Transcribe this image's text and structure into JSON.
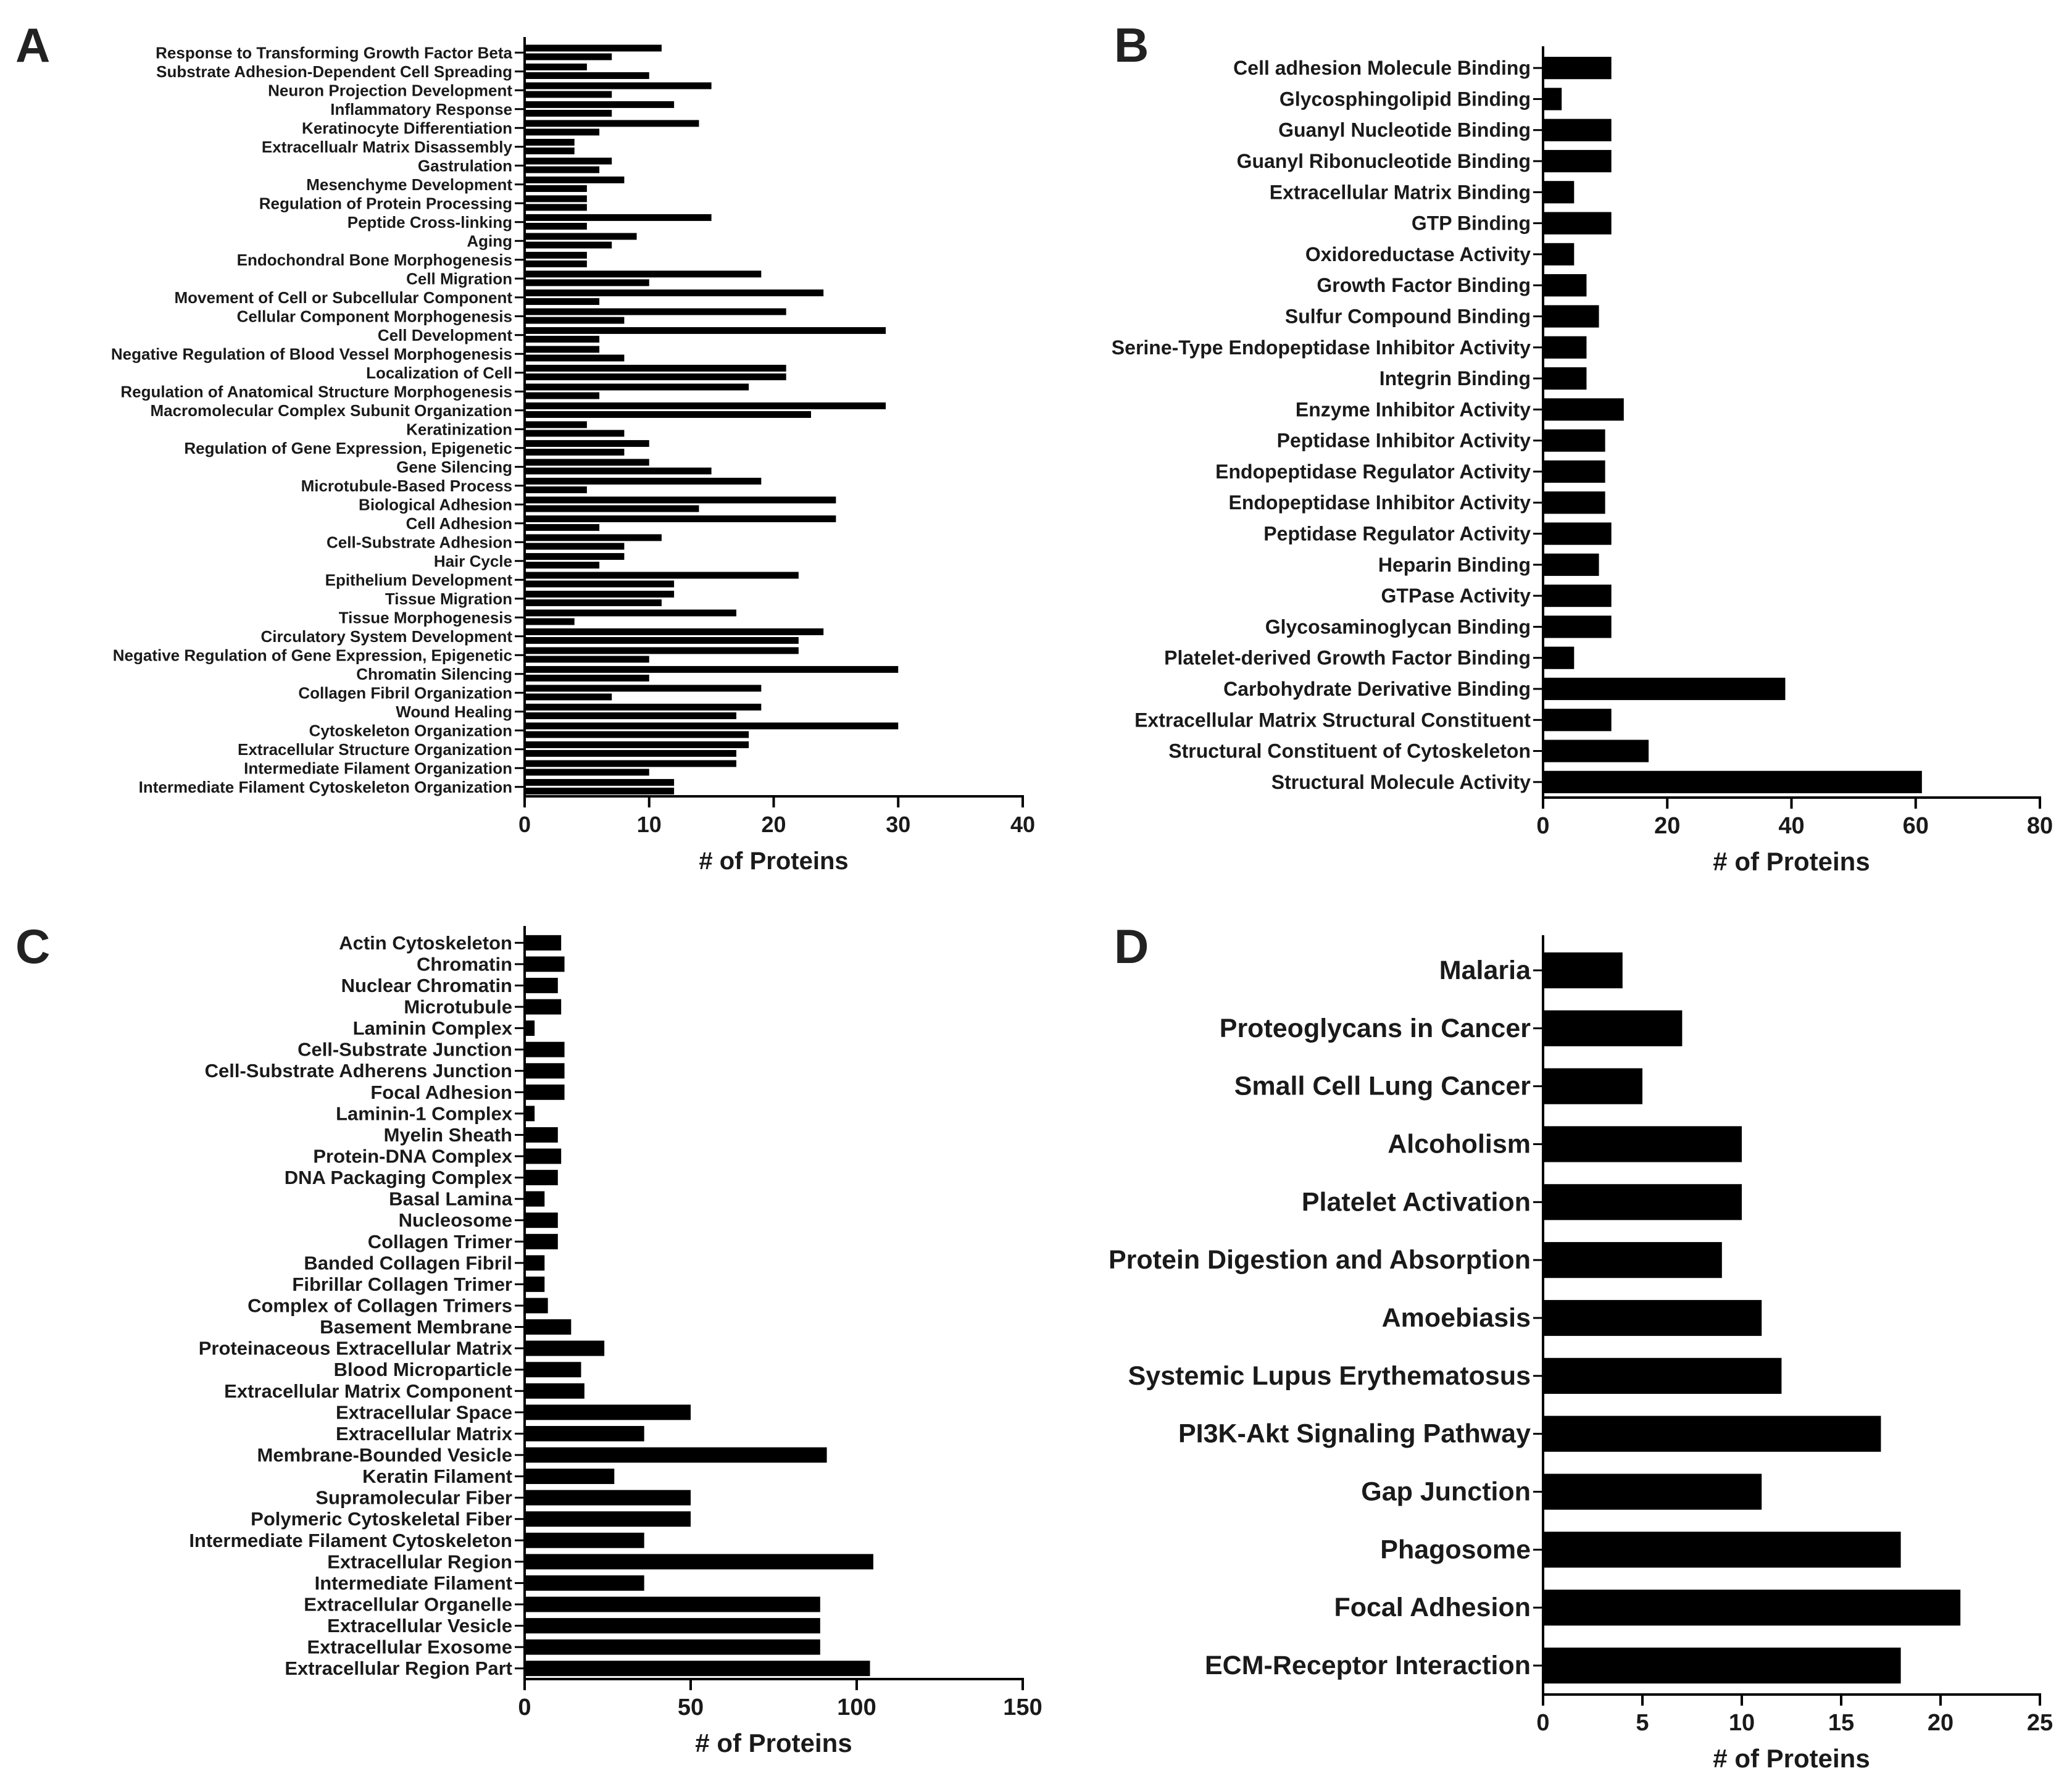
{
  "colors": {
    "bar": "#000000",
    "axis": "#000000",
    "text": "#1a1a1a"
  },
  "chart_data": [
    {
      "panel": "A",
      "type": "bar",
      "orientation": "horizontal",
      "xlabel": "# of Proteins",
      "xlim": [
        0,
        40
      ],
      "xticks": [
        0,
        10,
        20,
        30,
        40
      ],
      "categories": [
        "Response to Transforming Growth Factor Beta",
        "Substrate Adhesion-Dependent Cell Spreading",
        "Neuron Projection Development",
        "Inflammatory Response",
        "Keratinocyte Differentiation",
        "Extracellualr Matrix Disassembly",
        "Gastrulation",
        "Mesenchyme Development",
        "Regulation of Protein Processing",
        "Peptide Cross-linking",
        "Aging",
        "Endochondral Bone Morphogenesis",
        "Cell Migration",
        "Movement of Cell or Subcellular Component",
        "Cellular Component Morphogenesis",
        "Cell Development",
        "Negative Regulation of Blood Vessel Morphogenesis",
        "Localization of Cell",
        "Regulation of Anatomical Structure Morphogenesis",
        "Macromolecular Complex Subunit Organization",
        "Keratinization",
        "Regulation of Gene Expression, Epigenetic",
        "Gene Silencing",
        "Microtubule-Based Process",
        "Biological Adhesion",
        "Cell Adhesion",
        "Cell-Substrate Adhesion",
        "Hair Cycle",
        "Epithelium Development",
        "Tissue Migration",
        "Tissue Morphogenesis",
        "Circulatory System Development",
        "Negative Regulation of Gene Expression, Epigenetic",
        "Chromatin Silencing",
        "Collagen Fibril Organization",
        "Wound Healing",
        "Cytoskeleton Organization",
        "Extracellular Structure Organization",
        "Intermediate Filament Organization",
        "Intermediate Filament Cytoskeleton Organization"
      ],
      "series": [
        {
          "values": [
            11,
            5,
            15,
            12,
            14,
            4,
            7,
            8,
            5,
            15,
            9,
            5,
            19,
            24,
            21,
            29,
            6,
            21,
            18,
            29,
            5,
            10,
            10,
            19,
            25,
            25,
            11,
            8,
            22,
            12,
            17,
            24,
            22,
            30,
            19,
            19,
            30,
            18,
            17,
            12
          ]
        },
        {
          "values": [
            7,
            10,
            7,
            7,
            6,
            4,
            6,
            5,
            5,
            5,
            7,
            5,
            10,
            6,
            8,
            6,
            8,
            21,
            6,
            23,
            8,
            8,
            15,
            5,
            14,
            6,
            8,
            6,
            12,
            11,
            4,
            22,
            10,
            10,
            7,
            17,
            18,
            17,
            10,
            12
          ]
        }
      ]
    },
    {
      "panel": "B",
      "type": "bar",
      "orientation": "horizontal",
      "xlabel": "# of Proteins",
      "xlim": [
        0,
        80
      ],
      "xticks": [
        0,
        20,
        40,
        60,
        80
      ],
      "categories": [
        "Cell adhesion Molecule Binding",
        "Glycosphingolipid Binding",
        "Guanyl Nucleotide Binding",
        "Guanyl Ribonucleotide Binding",
        "Extracellular Matrix Binding",
        "GTP Binding",
        "Oxidoreductase Activity",
        "Growth Factor Binding",
        "Sulfur Compound Binding",
        "Serine-Type Endopeptidase Inhibitor Activity",
        "Integrin Binding",
        "Enzyme Inhibitor Activity",
        "Peptidase Inhibitor Activity",
        "Endopeptidase Regulator Activity",
        "Endopeptidase Inhibitor Activity",
        "Peptidase Regulator Activity",
        "Heparin Binding",
        "GTPase Activity",
        "Glycosaminoglycan Binding",
        "Platelet-derived Growth Factor Binding",
        "Carbohydrate Derivative Binding",
        "Extracellular Matrix Structural Constituent",
        "Structural Constituent of Cytoskeleton",
        "Structural Molecule Activity"
      ],
      "values": [
        11,
        3,
        11,
        11,
        5,
        11,
        5,
        7,
        9,
        7,
        7,
        13,
        10,
        10,
        10,
        11,
        9,
        11,
        11,
        5,
        39,
        11,
        17,
        61
      ]
    },
    {
      "panel": "C",
      "type": "bar",
      "orientation": "horizontal",
      "xlabel": "# of Proteins",
      "xlim": [
        0,
        150
      ],
      "xticks": [
        0,
        50,
        100,
        150
      ],
      "categories": [
        "Actin Cytoskeleton",
        "Chromatin",
        "Nuclear Chromatin",
        "Microtubule",
        "Laminin Complex",
        "Cell-Substrate Junction",
        "Cell-Substrate Adherens Junction",
        "Focal Adhesion",
        "Laminin-1 Complex",
        "Myelin Sheath",
        "Protein-DNA Complex",
        "DNA Packaging Complex",
        "Basal Lamina",
        "Nucleosome",
        "Collagen Trimer",
        "Banded Collagen Fibril",
        "Fibrillar Collagen Trimer",
        "Complex of Collagen Trimers",
        "Basement Membrane",
        "Proteinaceous Extracellular Matrix",
        "Blood Microparticle",
        "Extracellular Matrix Component",
        "Extracellular Space",
        "Extracellular Matrix",
        "Membrane-Bounded Vesicle",
        "Keratin Filament",
        "Supramolecular Fiber",
        "Polymeric Cytoskeletal Fiber",
        "Intermediate Filament Cytoskeleton",
        "Extracellular Region",
        "Intermediate Filament ",
        "Extracellular Organelle",
        "Extracellular Vesicle",
        "Extracellular Exosome",
        "Extracellular Region Part"
      ],
      "values": [
        11,
        12,
        10,
        11,
        3,
        12,
        12,
        12,
        3,
        10,
        11,
        10,
        6,
        10,
        10,
        6,
        6,
        7,
        14,
        24,
        17,
        18,
        50,
        36,
        91,
        27,
        50,
        50,
        36,
        105,
        36,
        89,
        89,
        89,
        104
      ]
    },
    {
      "panel": "D",
      "type": "bar",
      "orientation": "horizontal",
      "xlabel": "# of Proteins",
      "xlim": [
        0,
        25
      ],
      "xticks": [
        0,
        5,
        10,
        15,
        20,
        25
      ],
      "categories": [
        "Malaria",
        "Proteoglycans in Cancer",
        "Small Cell Lung Cancer",
        "Alcoholism",
        "Platelet Activation",
        "Protein Digestion and Absorption",
        "Amoebiasis",
        "Systemic Lupus Erythematosus",
        "PI3K-Akt Signaling Pathway",
        "Gap Junction",
        "Phagosome",
        "Focal Adhesion",
        "ECM-Receptor Interaction"
      ],
      "values": [
        4,
        7,
        5,
        10,
        10,
        9,
        11,
        12,
        17,
        11,
        18,
        21,
        18
      ]
    }
  ]
}
